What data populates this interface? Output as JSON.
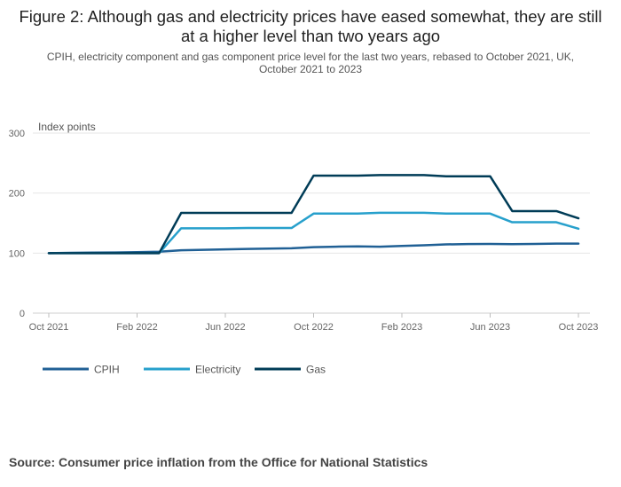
{
  "chart_data": {
    "type": "line",
    "title": "Figure 2: Although gas and electricity prices have eased somewhat, they are still at a higher level than two years ago",
    "subtitle": "CPIH, electricity component and gas component price level for the last two years, rebased to October 2021, UK, October 2021 to 2023",
    "ylabel": "Index points",
    "ylim": [
      0,
      300
    ],
    "yticks": [
      "0",
      "100",
      "200",
      "300"
    ],
    "xticks": [
      "Oct 2021",
      "Feb 2022",
      "Jun 2022",
      "Oct 2022",
      "Feb 2023",
      "Jun 2023",
      "Oct 2023"
    ],
    "xticks_index": [
      0,
      4,
      8,
      12,
      16,
      20,
      24
    ],
    "x": [
      "Oct 2021",
      "Nov 2021",
      "Dec 2021",
      "Jan 2022",
      "Feb 2022",
      "Mar 2022",
      "Apr 2022",
      "May 2022",
      "Jun 2022",
      "Jul 2022",
      "Aug 2022",
      "Sep 2022",
      "Oct 2022",
      "Nov 2022",
      "Dec 2022",
      "Jan 2023",
      "Feb 2023",
      "Mar 2023",
      "Apr 2023",
      "May 2023",
      "Jun 2023",
      "Jul 2023",
      "Aug 2023",
      "Sep 2023",
      "Oct 2023"
    ],
    "series": [
      {
        "name": "CPIH",
        "color": "#206095",
        "values": [
          100,
          100.4,
          100.9,
          101,
          101.6,
          102.4,
          104.8,
          105.4,
          106.3,
          106.9,
          107.5,
          108.1,
          110,
          110.7,
          111.3,
          110.7,
          111.9,
          113,
          114.5,
          115,
          115.2,
          114.9,
          115.3,
          115.8,
          115.8
        ]
      },
      {
        "name": "Electricity",
        "color": "#27a0cc",
        "values": [
          100,
          100,
          100,
          100,
          100,
          100,
          141.4,
          141.4,
          141.4,
          141.8,
          141.8,
          141.8,
          165.8,
          165.8,
          165.8,
          167.1,
          167.1,
          167.1,
          165.8,
          165.8,
          165.8,
          151.4,
          151.4,
          151.4,
          140.6
        ]
      },
      {
        "name": "Gas",
        "color": "#003c57",
        "values": [
          100,
          100,
          100,
          100,
          100,
          100,
          167,
          167,
          167,
          167,
          167,
          167,
          229,
          229,
          229,
          230,
          230,
          230,
          228,
          228,
          228,
          170,
          170,
          170,
          158
        ]
      }
    ],
    "legend_position": "bottom-left"
  },
  "footer": {
    "source": "Source: Consumer price inflation from the Office for National Statistics"
  }
}
